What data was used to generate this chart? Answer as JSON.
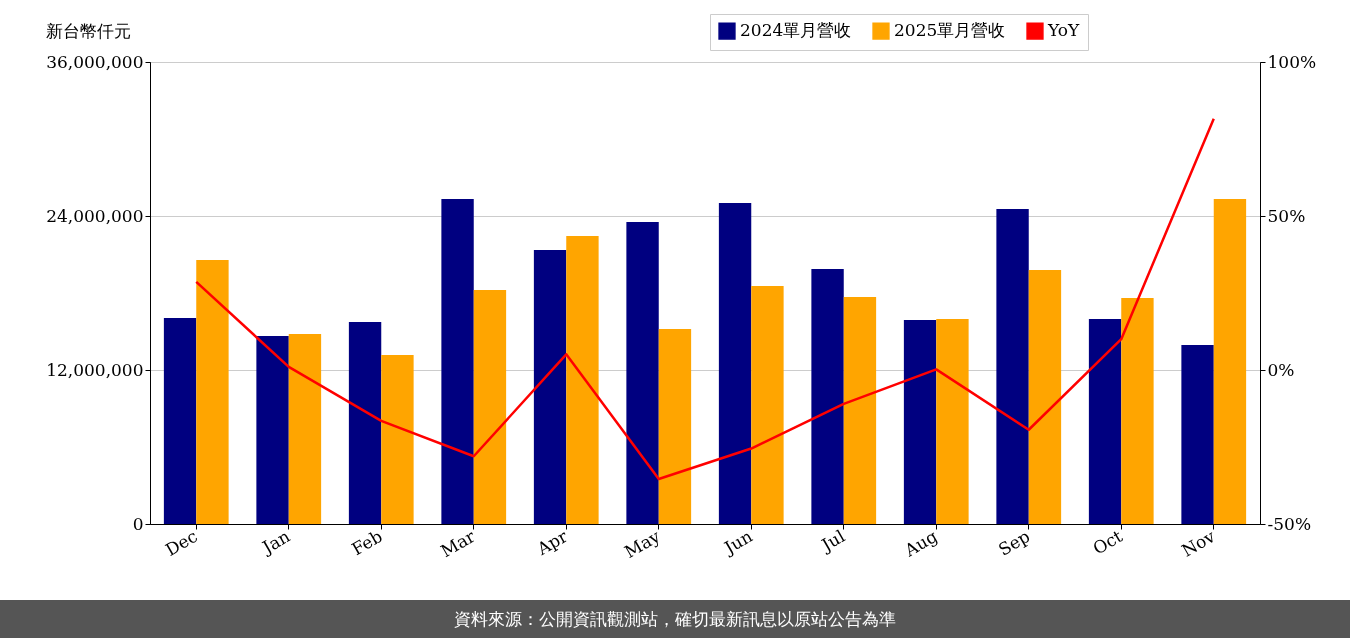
{
  "chart_data": {
    "type": "bar",
    "ylabel": "新台幣仟元",
    "categories": [
      "Dec",
      "Jan",
      "Feb",
      "Mar",
      "Apr",
      "May",
      "Jun",
      "Jul",
      "Aug",
      "Sep",
      "Oct",
      "Nov"
    ],
    "series": [
      {
        "name": "2024單月營收",
        "color": "#000080",
        "values": [
          16050000,
          14650000,
          15740000,
          25320000,
          21350000,
          23530000,
          25010000,
          19870000,
          15900000,
          24550000,
          15970000,
          13950000
        ]
      },
      {
        "name": "2025單月營收",
        "color": "#ffa500",
        "values": [
          20570000,
          14810000,
          13170000,
          18230000,
          22440000,
          15190000,
          18550000,
          17690000,
          15970000,
          19790000,
          17610000,
          25320000
        ]
      },
      {
        "name": "YoY",
        "type": "line",
        "axis": "y2",
        "color": "#ff0000",
        "values": [
          28.6,
          1,
          -16.5,
          -28,
          5.1,
          -35.4,
          -25.5,
          -11,
          0.2,
          -19.4,
          10,
          81.6
        ]
      }
    ],
    "ylim": [
      0,
      36000000
    ],
    "yticks": [
      {
        "value": 0,
        "label": "0"
      },
      {
        "value": 12000000,
        "label": "12,000,000"
      },
      {
        "value": 24000000,
        "label": "24,000,000"
      },
      {
        "value": 36000000,
        "label": "36,000,000"
      }
    ],
    "y2lim": [
      -50,
      100
    ],
    "y2ticks": [
      {
        "value": -50,
        "label": "-50%"
      },
      {
        "value": 0,
        "label": "0%"
      },
      {
        "value": 50,
        "label": "50%"
      },
      {
        "value": 100,
        "label": "100%"
      }
    ],
    "grid": "y",
    "legend": "top right",
    "annotations": [
      "資料來源：公開資訊觀測站，確切最新訊息以原站公告為準"
    ]
  }
}
